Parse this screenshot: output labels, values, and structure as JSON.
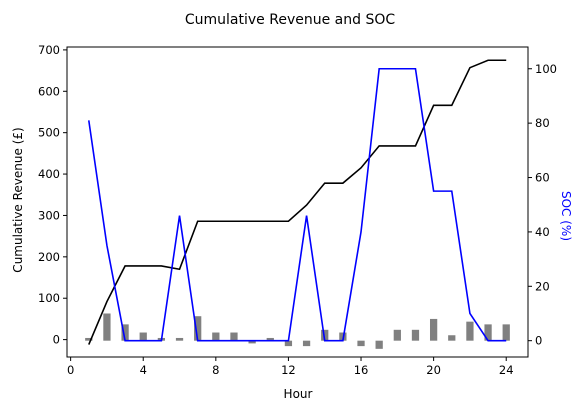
{
  "chart_data": {
    "type": "line",
    "title": "Cumulative Revenue and SOC",
    "xlabel": "Hour",
    "ylabel_left": "Cumulative Revenue (£)",
    "ylabel_right": "SOC (%)",
    "xlim": [
      -0.2,
      25.2
    ],
    "xticks": [
      0,
      4,
      8,
      12,
      16,
      20,
      24
    ],
    "ylim_left": [
      -42,
      707
    ],
    "yticks_left": [
      0,
      100,
      200,
      300,
      400,
      500,
      600,
      700
    ],
    "ylim_right": [
      -6,
      108
    ],
    "yticks_right": [
      0,
      20,
      40,
      60,
      80,
      100
    ],
    "grid": false,
    "legend": "none",
    "hours": [
      1,
      2,
      3,
      4,
      5,
      6,
      7,
      8,
      9,
      10,
      11,
      12,
      13,
      14,
      15,
      16,
      17,
      18,
      19,
      20,
      21,
      22,
      23,
      24
    ],
    "series": [
      {
        "axis": "left",
        "mark": "line",
        "color": "#000000",
        "values": [
          -12,
          92,
          178,
          178,
          178,
          170,
          286,
          286,
          286,
          286,
          286,
          286,
          325,
          378,
          378,
          415,
          468,
          468,
          468,
          566,
          566,
          657,
          675,
          675
        ]
      },
      {
        "axis": "right",
        "mark": "line",
        "color": "#0000ff",
        "values": [
          81,
          35,
          0,
          0,
          0,
          46,
          0,
          0,
          0,
          0,
          0,
          0,
          46,
          0,
          0,
          40,
          100,
          100,
          100,
          55,
          55,
          10,
          0,
          0
        ]
      },
      {
        "axis": "right",
        "mark": "bar",
        "color": "#808080",
        "values": [
          1,
          10,
          6,
          3,
          1,
          1,
          9,
          3,
          3,
          -1,
          1,
          -2,
          -2,
          4,
          3,
          -2,
          -3,
          4,
          4,
          8,
          2,
          7,
          6,
          6
        ]
      }
    ]
  }
}
